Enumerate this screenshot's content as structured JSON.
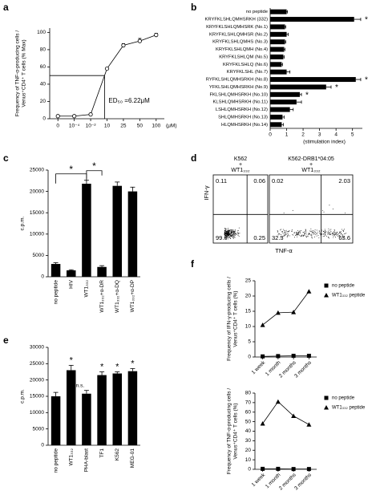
{
  "chart_data": [
    {
      "label": "a",
      "type": "scatter",
      "ylabel": [
        "Frequency of TNF-α-producing cells /",
        "Venus⁺CD4⁺ T cells (% Max)"
      ],
      "categories": [
        "0",
        "10⁻⁴",
        "10⁻²",
        "10",
        "25",
        "50",
        "100"
      ],
      "xunit": "(μM)",
      "values": [
        3,
        3,
        5,
        58,
        85,
        90,
        97
      ],
      "errors": [
        0,
        0,
        0,
        0,
        2,
        3,
        2
      ],
      "ylim": [
        0,
        105
      ],
      "yticks": [
        0,
        20,
        40,
        60,
        80,
        100
      ],
      "reference_y": 50,
      "annotation": "ED₅₀ =6.22μM"
    },
    {
      "label": "b",
      "type": "barh",
      "categories": [
        "no peptide",
        "KRYFKLSHLQMHSRKH (332)",
        "KRYFKLSHLQMHSRK (No.1)",
        "KRYFKLSHLQMHSR (No.2)",
        "KRYFKLSHLQMHS (No.3)",
        "KRYFKLSHLQMH (No.4)",
        "KRYFKLSHLQM (No.5)",
        "KRYFKLSHLQ (No.6)",
        "KRYFKLSHL (No.7)",
        "RYFKLSHLQMHSRKH (No.8)",
        "YFKLSHLQMHSRKH (No.9)",
        "FKLSHLQMHSRKH (No.10)",
        "KLSHLQMHSRKH (No.11)",
        "LSHLQMHSRKH (No.12)",
        "SHLQMHSRKH (No.13)",
        "HLQMHSRKH (No.14)"
      ],
      "values": [
        1.0,
        5.1,
        0.9,
        1.0,
        0.9,
        0.85,
        0.8,
        0.7,
        1.0,
        5.2,
        3.4,
        1.8,
        1.6,
        1.2,
        0.75,
        0.7
      ],
      "errors": [
        0.05,
        0.4,
        0.05,
        0.1,
        0.05,
        0.05,
        0.05,
        0.05,
        0.2,
        0.3,
        0.3,
        0.1,
        0.3,
        0.2,
        0.1,
        0.1
      ],
      "xlim": [
        0,
        5.6
      ],
      "xticks": [
        0,
        1,
        2,
        3,
        4,
        5
      ],
      "xlabel": "(stimulation index)",
      "markers": [
        {
          "category": "KRYFKLSHLQMHSRKH (332)",
          "text": "*"
        },
        {
          "category": "RYFKLSHLQMHSRKH (No.8)",
          "text": "*"
        },
        {
          "category": "YFKLSHLQMHSRKH (No.9)",
          "text": "*"
        },
        {
          "category": "FKLSHLQMHSRKH (No.10)",
          "text": "*"
        }
      ]
    },
    {
      "label": "c",
      "type": "vbar",
      "ylabel": "c.p.m.",
      "categories": [
        "no peptide",
        "HIV",
        "WT1₃₃₂",
        "WT1₃₃₂+α-DR",
        "WT1₃₃₂+α-DQ",
        "WT1₃₃₂+α-DP"
      ],
      "values": [
        3000,
        1500,
        21800,
        2300,
        21300,
        20000
      ],
      "errors": [
        300,
        150,
        800,
        300,
        900,
        1000
      ],
      "ylim": [
        0,
        25000
      ],
      "yticks": [
        0,
        5000,
        10000,
        15000,
        20000,
        25000
      ],
      "comparisons": [
        {
          "from": "no peptide",
          "to": "WT1₃₃₂",
          "text": "*"
        },
        {
          "from": "WT1₃₃₂",
          "to": "WT1₃₃₂+α-DR",
          "text": "*"
        }
      ]
    },
    {
      "label": "d",
      "type": "flow",
      "xlabel": "TNF-α",
      "ylabel": "IFN-γ",
      "plots": [
        {
          "title": [
            "K562",
            "+",
            "WT1₃₃₂"
          ],
          "quadrants": [
            "0.11",
            "0.06",
            "99.6",
            "0.25"
          ]
        },
        {
          "title": [
            "K562-DRB1*04:05",
            "+",
            "WT1₃₃₂"
          ],
          "quadrants": [
            "0.02",
            "2.03",
            "32.3",
            "65.6"
          ]
        }
      ]
    },
    {
      "label": "e",
      "type": "vbar",
      "ylabel": "c.p.m.",
      "categories": [
        "no peptide",
        "WT1₃₃₂",
        "PHA-blast",
        "TF1",
        "K562",
        "MEG-01"
      ],
      "values": [
        15000,
        23000,
        15800,
        21500,
        22000,
        22700
      ],
      "errors": [
        1200,
        1500,
        1000,
        1000,
        500,
        800
      ],
      "ylim": [
        0,
        30000
      ],
      "yticks": [
        0,
        5000,
        10000,
        15000,
        20000,
        25000,
        30000
      ],
      "markers": [
        {
          "category": "WT1₃₃₂",
          "text": "*"
        },
        {
          "category": "PHA-blast",
          "text": "n.s."
        },
        {
          "category": "TF1",
          "text": "*"
        },
        {
          "category": "K562",
          "text": "*"
        },
        {
          "category": "MEG-01",
          "text": "*"
        }
      ]
    },
    {
      "label": "f",
      "type": "line",
      "ylabel": [
        "Frequency of IFN-γ-producing cells /",
        "Venus⁺CD4⁺ T cells (%)"
      ],
      "categories": [
        "1 week",
        "1 month",
        "2 months",
        "3 months"
      ],
      "series": [
        {
          "name": "no peptide",
          "marker": "square",
          "color": "#000000",
          "values": [
            0.2,
            0.3,
            0.4,
            0.4
          ]
        },
        {
          "name": "WT1₃₃₂ peptide",
          "marker": "triangle",
          "color": "#000000",
          "values": [
            10.5,
            14.5,
            14.7,
            21.5
          ]
        }
      ],
      "ylim": [
        0,
        25
      ],
      "yticks": [
        0,
        5,
        10,
        15,
        20,
        25
      ]
    },
    {
      "type": "line",
      "ylabel": [
        "Frequency of TNF-α-producing cells /",
        "Venus⁺CD4⁺ T cells (%)"
      ],
      "categories": [
        "1 week",
        "1 month",
        "2 months",
        "3 months"
      ],
      "series": [
        {
          "name": "no peptide",
          "marker": "square",
          "color": "#000000",
          "values": [
            0.5,
            0.5,
            0.3,
            0.3
          ]
        },
        {
          "name": "WT1₃₃₂ peptide",
          "marker": "triangle",
          "color": "#000000",
          "values": [
            48,
            71,
            56,
            47
          ]
        }
      ],
      "ylim": [
        0,
        80
      ],
      "yticks": [
        0,
        10,
        20,
        30,
        40,
        50,
        60,
        70,
        80
      ]
    }
  ]
}
